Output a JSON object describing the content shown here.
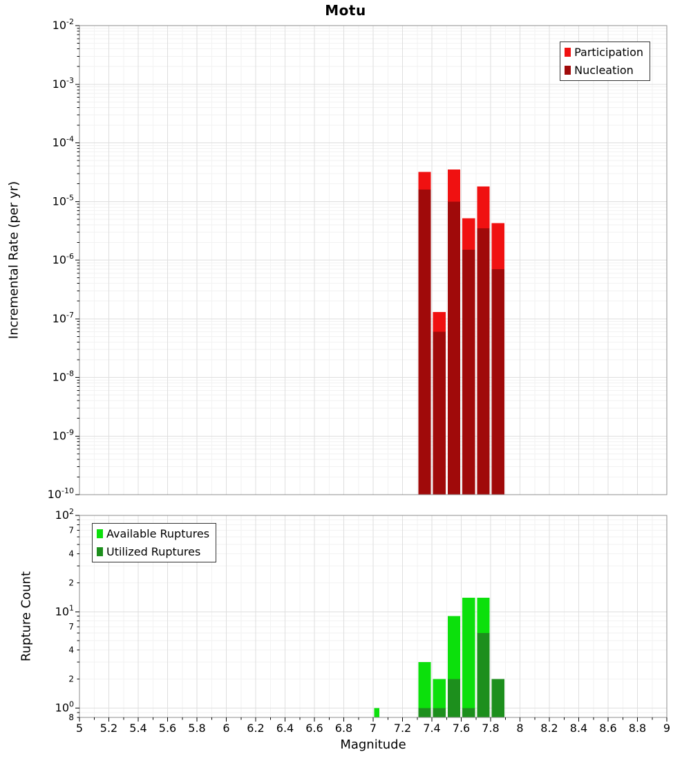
{
  "title": "Motu",
  "colors": {
    "participation": "#f01111",
    "nucleation": "#a00a0a",
    "available": "#0ce00c",
    "utilized": "#1d8f1d",
    "grid_major": "#dedede",
    "grid_minor": "#f2f2f2",
    "frame": "#8c8c8c",
    "axis_text": "#000000",
    "plot_background": "#ffffff"
  },
  "chart_data": [
    {
      "type": "bar",
      "panel": "incremental-rate",
      "title": "Motu",
      "xlabel": "Magnitude",
      "ylabel": "Incremental Rate (per yr)",
      "x_range": [
        5,
        9
      ],
      "y_range": [
        1e-10,
        0.01
      ],
      "y_scale": "log",
      "y_tick_style": "decades",
      "x_tick_step": 0.2,
      "grid": true,
      "bars_x": [
        7.35,
        7.45,
        7.55,
        7.65,
        7.75,
        7.85
      ],
      "bar_widths": [
        0.1,
        0.1,
        0.1,
        0.1,
        0.1,
        0.1
      ],
      "series": [
        {
          "name": "Participation",
          "color_key": "participation",
          "values": [
            3.2e-05,
            1.3e-07,
            3.5e-05,
            5.2e-06,
            1.8e-05,
            4.3e-06
          ]
        },
        {
          "name": "Nucleation",
          "color_key": "nucleation",
          "values": [
            1.6e-05,
            6e-08,
            1e-05,
            1.5e-06,
            3.5e-06,
            7e-07
          ]
        }
      ],
      "legend_position": "top-right"
    },
    {
      "type": "bar",
      "panel": "rupture-count",
      "xlabel": "Magnitude",
      "ylabel": "Rupture Count",
      "x_range": [
        5,
        9
      ],
      "y_range": [
        0.8,
        100
      ],
      "y_scale": "log",
      "y_tick_style": "log-with-minor-labels",
      "y_major_ticks": [
        100,
        10,
        1
      ],
      "y_minor_labeled": [
        70,
        40,
        20,
        7,
        4,
        2,
        0.8
      ],
      "x_tick_step": 0.2,
      "grid": true,
      "bars_x": [
        7.025,
        7.35,
        7.45,
        7.55,
        7.65,
        7.75,
        7.85
      ],
      "bar_widths": [
        0.05,
        0.1,
        0.1,
        0.1,
        0.1,
        0.1,
        0.1
      ],
      "series": [
        {
          "name": "Available Ruptures",
          "color_key": "available",
          "values": [
            1,
            3,
            2,
            9,
            14,
            14,
            2
          ]
        },
        {
          "name": "Utilized Ruptures",
          "color_key": "utilized",
          "values": [
            0,
            1,
            1,
            2,
            1,
            6,
            2
          ]
        }
      ],
      "legend_position": "top-left"
    }
  ],
  "x_tick_labels": [
    "5",
    "5.2",
    "5.4",
    "5.6",
    "5.8",
    "6",
    "6.2",
    "6.4",
    "6.6",
    "6.8",
    "7",
    "7.2",
    "7.4",
    "7.6",
    "7.8",
    "8",
    "8.2",
    "8.4",
    "8.6",
    "8.8",
    "9"
  ]
}
